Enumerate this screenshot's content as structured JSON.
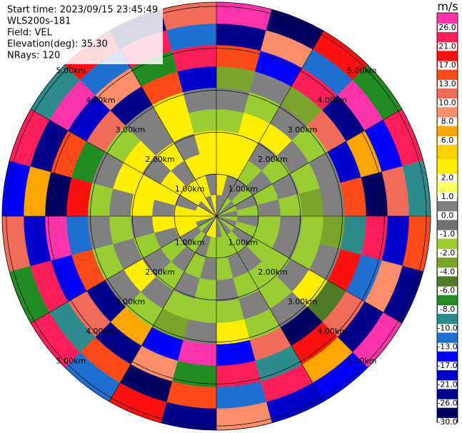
{
  "chart_data": {
    "type": "ppi",
    "annotations": [
      "Start time: 2023/09/15 23:45:49",
      "WLS200s-181",
      "Field: VEL",
      "Elevation(deg): 35.30",
      "NRays: 120"
    ],
    "rlim": [
      0,
      5.1
    ],
    "rticks": [
      {
        "value": 1,
        "label": "1.00km"
      },
      {
        "value": 2,
        "label": "2.00km"
      },
      {
        "value": 3,
        "label": "3.00km"
      },
      {
        "value": 4,
        "label": "4.00km"
      },
      {
        "value": 5,
        "label": "5.00km"
      }
    ],
    "thetaticks": [
      0,
      30,
      60,
      90,
      120,
      150,
      180,
      210,
      240,
      270,
      300,
      330
    ],
    "field": {
      "values": [
        [
          0.5,
          3,
          3,
          3,
          -1.5,
          0.5,
          -3,
          14,
          -22,
          28
        ],
        [
          0.5,
          0.5,
          3,
          3,
          3,
          -1.5,
          0.5,
          -15,
          9,
          -27
        ],
        [
          -1.5,
          0.5,
          -1.5,
          0.5,
          3,
          0.5,
          -3,
          22,
          -11,
          18
        ],
        [
          0.5,
          -1.5,
          0.5,
          -1.5,
          0.5,
          -1.5,
          11,
          -24,
          27,
          -7
        ],
        [
          -1.5,
          0.5,
          -1.5,
          0.5,
          -1.5,
          0.5,
          -19,
          7,
          -14,
          23
        ],
        [
          0.5,
          -1.5,
          0.5,
          -1.5,
          -3,
          0.5,
          16,
          -28,
          12,
          -9
        ],
        [
          -1.5,
          0.5,
          -1.5,
          0.5,
          -1.5,
          -3,
          -9,
          24,
          -17,
          15
        ],
        [
          0.5,
          -1.5,
          -1.5,
          0.5,
          -1.5,
          0.5,
          20,
          -12,
          9,
          -25
        ],
        [
          -1.5,
          0.5,
          -1.5,
          -1.5,
          0.5,
          3,
          -5,
          13,
          -23,
          27
        ],
        [
          0.5,
          -1.5,
          0.5,
          -1.5,
          -1.5,
          0.5,
          -27,
          18,
          7,
          -15
        ],
        [
          -1.5,
          -1.5,
          0.5,
          -1.5,
          0.5,
          -1.5,
          12,
          -9,
          25,
          -20
        ],
        [
          0.5,
          -1.5,
          -1.5,
          0.5,
          -1.5,
          3,
          -16,
          22,
          -11,
          9
        ],
        [
          3,
          -1.5,
          0.5,
          -1.5,
          -1.5,
          0.5,
          27,
          -7,
          14,
          -24
        ],
        [
          3,
          0.5,
          -1.5,
          0.5,
          -1.5,
          -3,
          -13,
          9,
          -28,
          19
        ],
        [
          0.5,
          -1.5,
          0.5,
          -1.5,
          0.5,
          -1.5,
          8,
          -21,
          16,
          -11
        ],
        [
          -1.5,
          0.5,
          -1.5,
          0.5,
          3,
          0.5,
          -24,
          12,
          -8,
          26
        ],
        [
          0.5,
          3,
          0.5,
          -1.5,
          0.5,
          -1.5,
          17,
          -14,
          23,
          -6
        ],
        [
          3,
          3,
          3,
          0.5,
          -1.5,
          0.5,
          -10,
          27,
          -19,
          11
        ],
        [
          3,
          3,
          0.5,
          3,
          0.5,
          -1.5,
          21,
          -26,
          8,
          -16
        ],
        [
          3,
          0.5,
          3,
          3,
          3,
          0.5,
          -7,
          15,
          -22,
          24
        ],
        [
          0.5,
          3,
          3,
          0.5,
          3,
          -1.5,
          11,
          -17,
          28,
          -9
        ],
        [
          3,
          3,
          0.5,
          3,
          0.5,
          0.5,
          -23,
          9,
          -12,
          19
        ],
        [
          0.5,
          3,
          3,
          0.5,
          3,
          3,
          14,
          -6,
          22,
          -27
        ],
        [
          3,
          0.5,
          3,
          3,
          -1.5,
          0.5,
          -18,
          25,
          -10,
          13
        ]
      ]
    },
    "colorbar": {
      "label": "m/s",
      "levels": [
        26,
        21,
        17,
        13,
        10,
        8,
        6,
        4,
        2,
        1,
        0,
        -1,
        -2,
        -4,
        -6,
        -8,
        -10,
        -13,
        -17,
        -21,
        -26,
        -30
      ],
      "colors": [
        "#ff33aa",
        "#ff1f5a",
        "#ff1010",
        "#ff4a1a",
        "#f26b5b",
        "#ff8f6b",
        "#ffa500",
        "#ffd000",
        "#ffee00",
        "#ffff66",
        "#808080",
        "#707070",
        "#9acd32",
        "#7aa52a",
        "#4f7a28",
        "#228b22",
        "#2e8b8b",
        "#1e6fd0",
        "#0000ff",
        "#0000cd",
        "#00008b",
        "#000060"
      ],
      "ticks": [
        {
          "value": 26,
          "label": "26.0"
        },
        {
          "value": 21,
          "label": "21.0"
        },
        {
          "value": 17,
          "label": "17.0"
        },
        {
          "value": 13,
          "label": "13.0"
        },
        {
          "value": 10,
          "label": "10.0"
        },
        {
          "value": 8,
          "label": "8.0"
        },
        {
          "value": 6,
          "label": "6.0"
        },
        {
          "value": 2,
          "label": "2.0"
        },
        {
          "value": 1,
          "label": "1.0"
        },
        {
          "value": 0,
          "label": "0.0"
        },
        {
          "value": -1,
          "label": "-1.0"
        },
        {
          "value": -2,
          "label": "-2.0"
        },
        {
          "value": -4,
          "label": "-4.0"
        },
        {
          "value": -6,
          "label": "-6.0"
        },
        {
          "value": -8,
          "label": "-8.0"
        },
        {
          "value": -10,
          "label": "-10.0"
        },
        {
          "value": -13,
          "label": "-13.0"
        },
        {
          "value": -17,
          "label": "-17.0"
        },
        {
          "value": -21,
          "label": "-21.0"
        },
        {
          "value": -26,
          "label": "-26.0"
        },
        {
          "value": -30,
          "label": "-30.0"
        }
      ]
    }
  }
}
